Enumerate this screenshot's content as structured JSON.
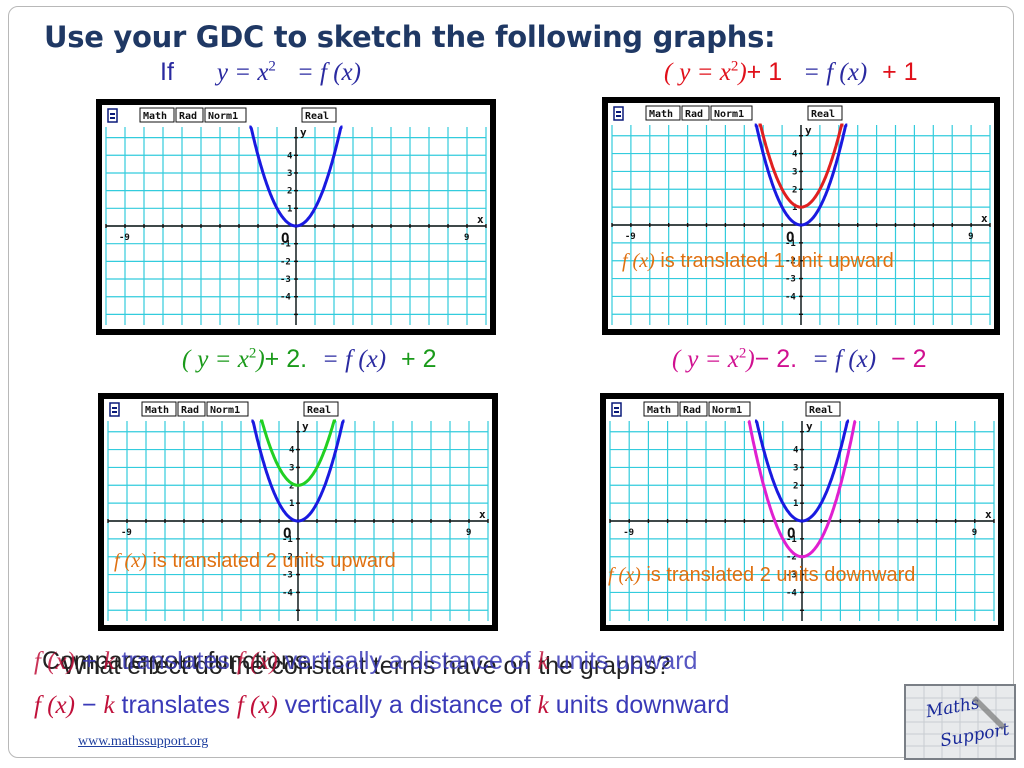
{
  "title": "Use your GDC to sketch the following graphs:",
  "top_left_eq": {
    "if_label": "If",
    "lhs": "y = x",
    "exp": "2",
    "rhs": "= f (x)"
  },
  "panels": [
    {
      "id": "p1",
      "eq_open": "(",
      "eq_lhs": "y = x",
      "eq_exp": "2",
      "eq_close": ")",
      "eq_shift": "+ 1",
      "eq_rhs": "= f (x)",
      "eq_rhs_shift": "+ 1",
      "annotation_fx": "f (x)",
      "annotation_text": " is translated 1 unit upward",
      "shift": 1,
      "curve_color": "#e02020"
    },
    {
      "id": "p2",
      "eq_open": "(",
      "eq_lhs": "y = x",
      "eq_exp": "2",
      "eq_close": ")",
      "eq_shift": "+ 2.",
      "eq_rhs": "= f (x)",
      "eq_rhs_shift": "+ 2",
      "annotation_fx": "f (x)",
      "annotation_text": " is translated 2 units upward",
      "shift": 2,
      "curve_color": "#22d022"
    },
    {
      "id": "p3",
      "eq_open": "(",
      "eq_lhs": "y = x",
      "eq_exp": "2",
      "eq_close": ")",
      "eq_shift": "− 2.",
      "eq_rhs": "= f (x)",
      "eq_rhs_shift": "− 2",
      "annotation_fx": "f (x)",
      "annotation_text": " is translated 2 units downward",
      "shift": -2,
      "curve_color": "#e020d0"
    }
  ],
  "gdc": {
    "status": [
      "Math",
      "Rad",
      "Norm1",
      "Real"
    ],
    "x_label": "x",
    "y_label": "y",
    "origin": "O",
    "x_tick_left": "-9",
    "x_tick_right": "9",
    "y_ticks_pos": [
      "4",
      "3",
      "2",
      "1"
    ],
    "y_ticks_neg": [
      "-1",
      "-2",
      "-3",
      "-4"
    ],
    "base_curve_color": "#1a1ae0",
    "grid_color": "#33ccdd"
  },
  "bottom": {
    "line1_overlay_a": "Compare your functions.",
    "line1_overlay_b": "What effect do the constant terms have on the graphs?",
    "line1_fx": "f (x)",
    "line1_plus": " + ",
    "line1_k": "k",
    "line1_translates": " translates ",
    "line1_fx2": "f (x)",
    "line1_rest": " vertically a distance of ",
    "line1_k2": "k",
    "line1_end": " units upward",
    "line2_fx": "f (x)",
    "line2_minus": " − ",
    "line2_k": "k",
    "line2_translates": " translates ",
    "line2_fx2": "f (x)",
    "line2_rest": " vertically a distance of ",
    "line2_k2": "k",
    "line2_end": " units downward"
  },
  "footer": "www.mathssupport.org",
  "logo_text": [
    "Maths",
    "Support"
  ]
}
